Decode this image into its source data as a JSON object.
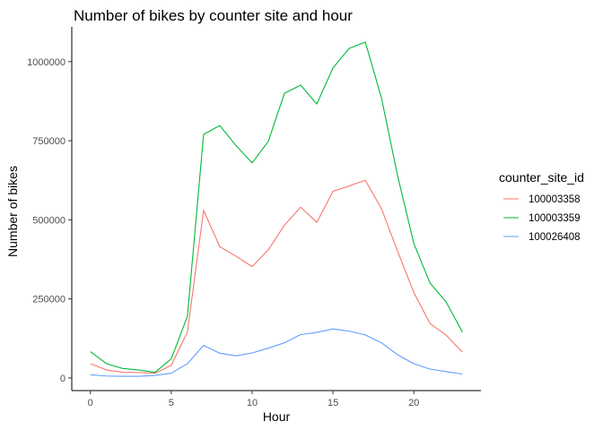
{
  "chart_data": {
    "type": "line",
    "title": "Number of bikes by counter site and hour",
    "xlabel": "Hour",
    "ylabel": "Number of bikes",
    "xlim": [
      -1.15,
      24.15
    ],
    "ylim": [
      -40000,
      1110000
    ],
    "x_ticks": [
      0,
      5,
      10,
      15,
      20
    ],
    "y_ticks": [
      0,
      250000,
      500000,
      750000,
      1000000
    ],
    "y_tick_labels": [
      "0",
      "250000",
      "500000",
      "750000",
      "1000000"
    ],
    "grid": false,
    "legend": {
      "title": "counter_site_id",
      "position": "right"
    },
    "x": [
      0,
      1,
      2,
      3,
      4,
      5,
      6,
      7,
      8,
      9,
      10,
      11,
      12,
      13,
      14,
      15,
      16,
      17,
      18,
      19,
      20,
      21,
      22,
      23
    ],
    "series": [
      {
        "name": "100003358",
        "color": "#f8766d",
        "values": [
          45000,
          25000,
          18000,
          17000,
          15000,
          40000,
          145000,
          530000,
          415000,
          385000,
          352000,
          405000,
          483000,
          540000,
          492000,
          590000,
          607000,
          625000,
          535000,
          400000,
          270000,
          172000,
          135000,
          82000
        ]
      },
      {
        "name": "100003359",
        "color": "#00ba38",
        "values": [
          83000,
          45000,
          30000,
          25000,
          18000,
          60000,
          195000,
          770000,
          798000,
          735000,
          680000,
          748000,
          900000,
          926000,
          866000,
          980000,
          1042000,
          1062000,
          885000,
          638000,
          425000,
          300000,
          240000,
          145000
        ]
      },
      {
        "name": "100026408",
        "color": "#619cff",
        "values": [
          10000,
          6000,
          5000,
          5000,
          8000,
          15000,
          45000,
          103000,
          78000,
          70000,
          79000,
          94000,
          111000,
          137000,
          144000,
          155000,
          148000,
          136000,
          111000,
          73000,
          45000,
          28000,
          20000,
          12000
        ]
      }
    ]
  }
}
